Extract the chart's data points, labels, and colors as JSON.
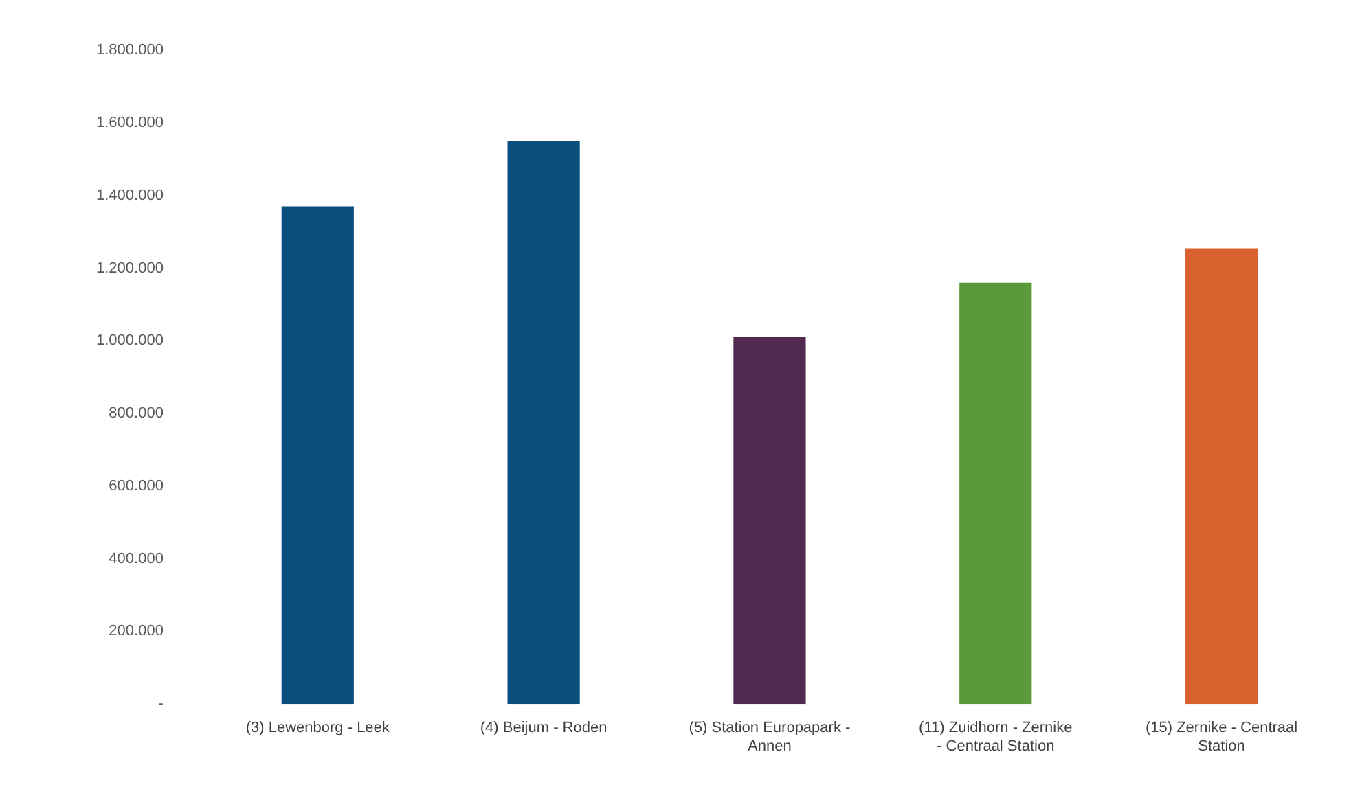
{
  "chart_data": {
    "type": "bar",
    "categories": [
      "(3) Lewenborg - Leek",
      "(4) Beijum - Roden",
      "(5) Station Europapark - Annen",
      "(11) Zuidhorn - Zernike - Centraal Station",
      "(15) Zernike - Centraal Station"
    ],
    "values": [
      1370000,
      1550000,
      1012000,
      1160000,
      1255000
    ],
    "colors": [
      "#0b4f7e",
      "#0b4f7e",
      "#522a50",
      "#5b9a3a",
      "#d9632f"
    ],
    "ylim": [
      0,
      1800000
    ],
    "yticks": [
      {
        "value": 0,
        "label": "-"
      },
      {
        "value": 200000,
        "label": "200.000"
      },
      {
        "value": 400000,
        "label": "400.000"
      },
      {
        "value": 600000,
        "label": "600.000"
      },
      {
        "value": 800000,
        "label": "800.000"
      },
      {
        "value": 1000000,
        "label": "1.000.000"
      },
      {
        "value": 1200000,
        "label": "1.200.000"
      },
      {
        "value": 1400000,
        "label": "1.400.000"
      },
      {
        "value": 1600000,
        "label": "1.600.000"
      },
      {
        "value": 1800000,
        "label": "1.800.000"
      }
    ],
    "grid": false,
    "legend": false
  }
}
